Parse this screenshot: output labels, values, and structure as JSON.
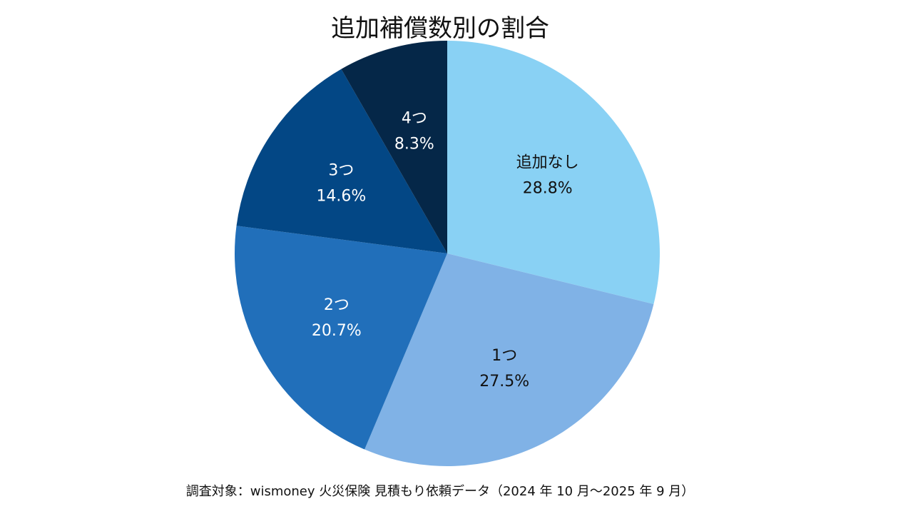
{
  "chart_data": {
    "type": "pie",
    "title": "追加補償数別の割合",
    "footnote": "調査対象：wismoney 火災保険 見積もり依頼データ（2024 年 10 月〜2025 年 9 月）",
    "start_angle_deg": 0,
    "direction": "clockwise",
    "slices": [
      {
        "label": "追加なし",
        "value": 28.8,
        "display": "28.8%",
        "color": "#89d1f4",
        "text_color": "#111111"
      },
      {
        "label": "1つ",
        "value": 27.5,
        "display": "27.5%",
        "color": "#80b2e6",
        "text_color": "#111111"
      },
      {
        "label": "2つ",
        "value": 20.7,
        "display": "20.7%",
        "color": "#216fba",
        "text_color": "#ffffff"
      },
      {
        "label": "3つ",
        "value": 14.6,
        "display": "14.6%",
        "color": "#034785",
        "text_color": "#ffffff"
      },
      {
        "label": "4つ",
        "value": 8.3,
        "display": "8.3%",
        "color": "#052748",
        "text_color": "#ffffff"
      }
    ]
  }
}
